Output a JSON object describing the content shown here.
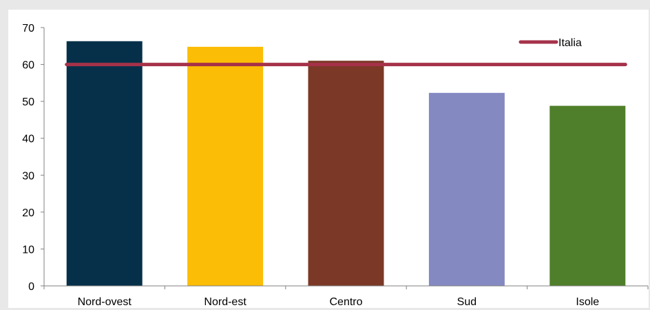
{
  "chart_data": {
    "type": "bar",
    "categories": [
      "Nord-ovest",
      "Nord-est",
      "Centro",
      "Sud",
      "Isole"
    ],
    "series": [
      {
        "values": [
          66.3,
          64.8,
          61.0,
          52.3,
          48.8
        ],
        "colors": [
          "#06304a",
          "#fbbd06",
          "#7b3826",
          "#8589c2",
          "#4f7f2a"
        ]
      },
      {
        "name": "Italia",
        "type": "line",
        "values": [
          60.0,
          60.0,
          60.0,
          60.0,
          60.0
        ],
        "color": "#a53249"
      }
    ],
    "ylim": [
      0,
      70
    ],
    "yticks": [
      0,
      10,
      20,
      30,
      40,
      50,
      60,
      70
    ],
    "grid": false,
    "legend": {
      "position": "top-right",
      "entries": [
        "Italia"
      ]
    },
    "background": "#e8e8e8",
    "plot_background": "#ffffff"
  }
}
